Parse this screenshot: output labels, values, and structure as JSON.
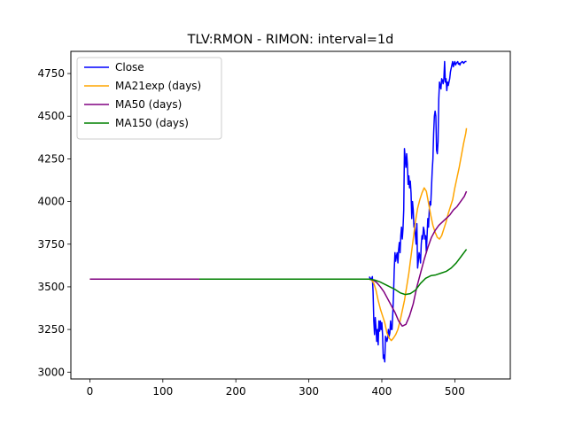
{
  "chart_data": {
    "type": "line",
    "title": "TLV:RMON - RIMON: interval=1d",
    "xlabel": "",
    "ylabel": "",
    "xlim": [
      -26,
      576
    ],
    "ylim": [
      2960,
      4880
    ],
    "xticks": [
      0,
      100,
      200,
      300,
      400,
      500
    ],
    "yticks": [
      3000,
      3250,
      3500,
      3750,
      4000,
      4250,
      4500,
      4750
    ],
    "grid": false,
    "legend_position": "top-left",
    "series": [
      {
        "name": "Close",
        "color": "#0000ff",
        "x": [
          383,
          384,
          385,
          386,
          387,
          388,
          389,
          390,
          391,
          392,
          393,
          394,
          395,
          396,
          397,
          398,
          399,
          400,
          401,
          402,
          403,
          404,
          405,
          406,
          407,
          408,
          409,
          410,
          411,
          412,
          413,
          414,
          415,
          416,
          417,
          418,
          419,
          420,
          421,
          422,
          423,
          424,
          425,
          426,
          427,
          428,
          429,
          430,
          431,
          432,
          433,
          434,
          435,
          436,
          437,
          438,
          439,
          440,
          441,
          442,
          443,
          444,
          445,
          446,
          447,
          448,
          449,
          450,
          451,
          452,
          453,
          454,
          455,
          456,
          457,
          458,
          459,
          460,
          461,
          462,
          463,
          464,
          465,
          466,
          467,
          468,
          469,
          470,
          471,
          472,
          473,
          474,
          475,
          476,
          477,
          478,
          479,
          480,
          481,
          482,
          483,
          484,
          485,
          486,
          487,
          488,
          489,
          490,
          491,
          492,
          493,
          494,
          495,
          496,
          497,
          498,
          499,
          500,
          501,
          502,
          503,
          504,
          505,
          506,
          507,
          508,
          509,
          510,
          511,
          512,
          513,
          514,
          515,
          516
        ],
        "values": [
          3560,
          3545,
          3550,
          3540,
          3560,
          3470,
          3300,
          3220,
          3320,
          3260,
          3180,
          3250,
          3160,
          3300,
          3240,
          3300,
          3250,
          3290,
          3220,
          3080,
          3100,
          3060,
          3210,
          3200,
          3180,
          3200,
          3250,
          3210,
          3230,
          3300,
          3250,
          3250,
          3340,
          3450,
          3600,
          3700,
          3650,
          3680,
          3700,
          3640,
          3720,
          3760,
          3700,
          3800,
          3850,
          3780,
          3840,
          3950,
          4310,
          4250,
          4200,
          4280,
          4220,
          4100,
          4150,
          4080,
          4120,
          4050,
          3900,
          4000,
          3950,
          3850,
          3870,
          3800,
          3750,
          3870,
          3610,
          3650,
          3700,
          3680,
          3640,
          3750,
          3800,
          3780,
          3850,
          3830,
          3780,
          3800,
          3700,
          3800,
          3900,
          3850,
          3950,
          4000,
          3980,
          4080,
          4180,
          4250,
          4400,
          4500,
          4530,
          4500,
          4300,
          4280,
          4350,
          4600,
          4700,
          4680,
          4660,
          4720,
          4710,
          4690,
          4720,
          4820,
          4700,
          4720,
          4650,
          4700,
          4680,
          4700,
          4720,
          4760,
          4780,
          4800,
          4820,
          4790,
          4810,
          4820,
          4800,
          4810,
          4815,
          4820,
          4805,
          4810,
          4800,
          4812,
          4815,
          4820,
          4818,
          4810,
          4815,
          4820,
          4820,
          4820
        ]
      },
      {
        "name": "MA21exp (days)",
        "color": "#ffa500",
        "x": [
          0,
          50,
          100,
          150,
          200,
          250,
          300,
          350,
          383,
          386,
          389,
          392,
          395,
          398,
          401,
          404,
          407,
          410,
          413,
          416,
          419,
          422,
          425,
          428,
          431,
          434,
          437,
          440,
          443,
          446,
          449,
          452,
          455,
          458,
          461,
          464,
          467,
          470,
          473,
          476,
          479,
          482,
          485,
          488,
          491,
          494,
          497,
          500,
          503,
          506,
          509,
          512,
          515,
          516
        ],
        "values": [
          3545,
          3545,
          3545,
          3545,
          3545,
          3545,
          3545,
          3545,
          3545,
          3540,
          3520,
          3480,
          3420,
          3370,
          3330,
          3290,
          3230,
          3200,
          3185,
          3200,
          3220,
          3250,
          3300,
          3360,
          3420,
          3500,
          3580,
          3680,
          3780,
          3880,
          3960,
          4010,
          4050,
          4080,
          4060,
          3990,
          3920,
          3860,
          3820,
          3790,
          3780,
          3800,
          3840,
          3880,
          3930,
          3970,
          4010,
          4080,
          4140,
          4200,
          4270,
          4340,
          4400,
          4430
        ]
      },
      {
        "name": "MA50 (days)",
        "color": "#800080",
        "x": [
          0,
          50,
          100,
          150,
          200,
          250,
          300,
          350,
          383,
          388,
          393,
          398,
          403,
          408,
          413,
          418,
          423,
          428,
          433,
          438,
          443,
          448,
          453,
          458,
          463,
          468,
          473,
          478,
          483,
          488,
          493,
          498,
          503,
          508,
          513,
          516
        ],
        "values": [
          3545,
          3545,
          3545,
          3545,
          3545,
          3545,
          3545,
          3545,
          3545,
          3540,
          3525,
          3500,
          3470,
          3430,
          3390,
          3350,
          3300,
          3270,
          3280,
          3330,
          3400,
          3500,
          3580,
          3660,
          3730,
          3790,
          3830,
          3860,
          3880,
          3900,
          3920,
          3950,
          3970,
          4000,
          4030,
          4060
        ]
      },
      {
        "name": "MA150 (days)",
        "color": "#008000",
        "x": [
          150,
          200,
          250,
          300,
          350,
          383,
          390,
          397,
          404,
          411,
          418,
          425,
          432,
          439,
          446,
          453,
          460,
          467,
          474,
          481,
          488,
          495,
          502,
          509,
          516
        ],
        "values": [
          3545,
          3545,
          3545,
          3545,
          3545,
          3545,
          3540,
          3530,
          3515,
          3500,
          3485,
          3465,
          3455,
          3460,
          3480,
          3520,
          3550,
          3565,
          3570,
          3580,
          3590,
          3610,
          3640,
          3680,
          3720
        ]
      }
    ]
  }
}
